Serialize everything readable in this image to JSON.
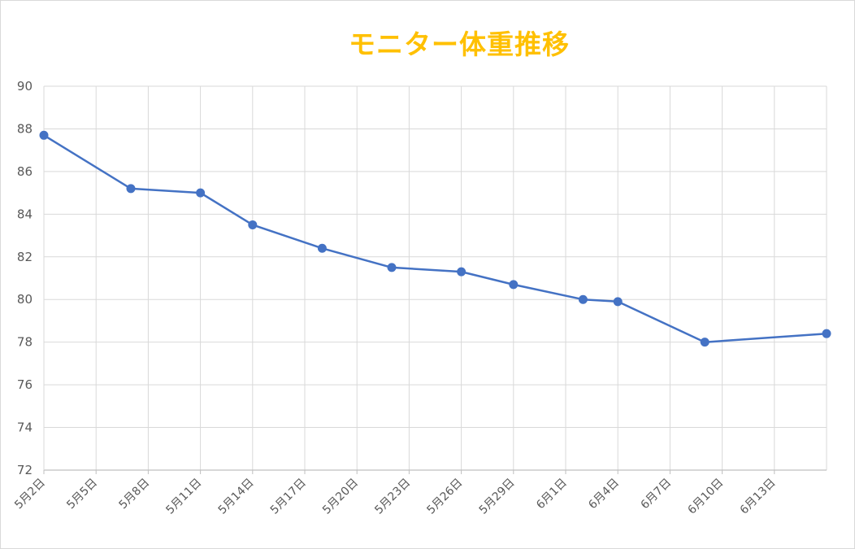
{
  "chart_data": {
    "type": "line",
    "title": "モニター体重推移",
    "xlabel": "",
    "ylabel": "",
    "ylim": [
      72,
      90
    ],
    "yticks": [
      72,
      74,
      76,
      78,
      80,
      82,
      84,
      86,
      88,
      90
    ],
    "x_tick_labels": [
      "5月2日",
      "5月5日",
      "5月8日",
      "5月11日",
      "5月14日",
      "5月17日",
      "5月20日",
      "5月23日",
      "5月26日",
      "5月29日",
      "6月1日",
      "6月4日",
      "6月7日",
      "6月10日",
      "6月13日"
    ],
    "grid": true,
    "legend": "none",
    "series": [
      {
        "color": "#4472c4",
        "points": [
          {
            "x": "5月2日",
            "y": 87.7
          },
          {
            "x": "5月7日",
            "y": 85.2
          },
          {
            "x": "5月11日",
            "y": 85.0
          },
          {
            "x": "5月14日",
            "y": 83.5
          },
          {
            "x": "5月18日",
            "y": 82.4
          },
          {
            "x": "5月22日",
            "y": 81.5
          },
          {
            "x": "5月26日",
            "y": 81.3
          },
          {
            "x": "5月29日",
            "y": 80.7
          },
          {
            "x": "6月2日",
            "y": 80.0
          },
          {
            "x": "6月4日",
            "y": 79.9
          },
          {
            "x": "6月9日",
            "y": 78.0
          },
          {
            "x": "6月16日",
            "y": 78.4
          }
        ]
      }
    ]
  }
}
